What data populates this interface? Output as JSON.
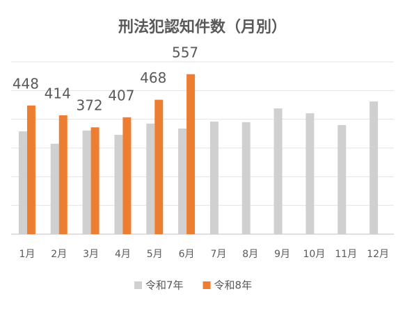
{
  "chart_data": {
    "type": "bar",
    "title": "刑法犯認知件数（月別）",
    "categories": [
      "1月",
      "2月",
      "3月",
      "4月",
      "5月",
      "6月",
      "7月",
      "8月",
      "9月",
      "10月",
      "11月",
      "12月"
    ],
    "series": [
      {
        "name": "令和7年",
        "color": "#d0d0d0",
        "values": [
          358,
          315,
          361,
          346,
          385,
          368,
          392,
          390,
          438,
          421,
          380,
          462
        ]
      },
      {
        "name": "令和8年",
        "color": "#ed7d31",
        "values": [
          448,
          414,
          372,
          407,
          468,
          557,
          null,
          null,
          null,
          null,
          null,
          null
        ],
        "data_labels": true
      }
    ],
    "ylim": [
      0,
      600
    ],
    "yticks": [
      0,
      100,
      200,
      300,
      400,
      500,
      600
    ],
    "grid": true,
    "legend": "bottom"
  }
}
